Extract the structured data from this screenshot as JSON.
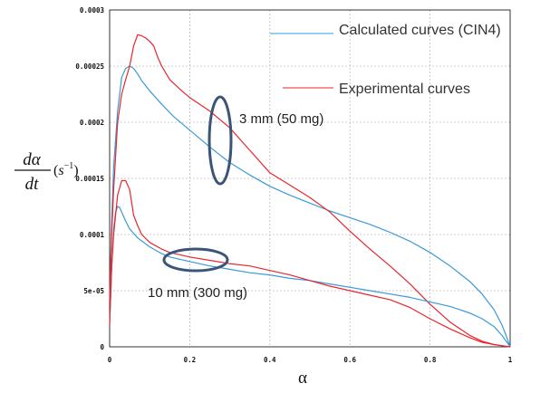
{
  "chart_data": {
    "type": "line",
    "title": "",
    "xlabel": "α",
    "ylabel": {
      "numerator": "dα",
      "denominator": "dt",
      "unit_base": "s",
      "unit_exp": "−1"
    },
    "xlim": [
      0,
      1
    ],
    "ylim": [
      0,
      0.0003
    ],
    "x_ticks": [
      {
        "value": 0,
        "label": "0"
      },
      {
        "value": 0.2,
        "label": "0.2"
      },
      {
        "value": 0.4,
        "label": "0.4"
      },
      {
        "value": 0.6,
        "label": "0.6"
      },
      {
        "value": 0.8,
        "label": "0.8"
      },
      {
        "value": 1,
        "label": "1"
      }
    ],
    "y_ticks": [
      {
        "value": 0,
        "label": "0"
      },
      {
        "value": 5e-05,
        "label": "5e-05"
      },
      {
        "value": 0.0001,
        "label": "0.0001"
      },
      {
        "value": 0.00015,
        "label": "0.00015"
      },
      {
        "value": 0.0002,
        "label": "0.0002"
      },
      {
        "value": 0.00025,
        "label": "0.00025"
      },
      {
        "value": 0.0003,
        "label": "0.0003"
      }
    ],
    "grid": true,
    "legend": [
      {
        "label": "Calculated curves (CIN4)",
        "color": "#3a9ad9"
      },
      {
        "label": "Experimental curves",
        "color": "#e8262c"
      }
    ],
    "annotations": [
      {
        "text": "3 mm (50 mg)",
        "ellipse_center": [
          0.275,
          0.000183
        ]
      },
      {
        "text": "10 mm (300 mg)",
        "ellipse_center": [
          0.215,
          7.8e-05
        ]
      }
    ],
    "series": [
      {
        "group": "3 mm (50 mg)",
        "kind": "calculated",
        "color": "#3a9ad9",
        "x": [
          0,
          0.005,
          0.01,
          0.02,
          0.03,
          0.04,
          0.05,
          0.06,
          0.07,
          0.08,
          0.1,
          0.13,
          0.16,
          0.2,
          0.25,
          0.3,
          0.35,
          0.4,
          0.45,
          0.5,
          0.55,
          0.6,
          0.65,
          0.7,
          0.75,
          0.8,
          0.85,
          0.9,
          0.93,
          0.96,
          0.98,
          0.99,
          1
        ],
        "y": [
          4e-05,
          0.00011,
          0.00016,
          0.00021,
          0.00024,
          0.000248,
          0.00025,
          0.000248,
          0.000243,
          0.000237,
          0.000228,
          0.000216,
          0.000205,
          0.000193,
          0.000178,
          0.000164,
          0.000153,
          0.000143,
          0.000135,
          0.000128,
          0.000121,
          0.000115,
          0.000109,
          0.000102,
          9.4e-05,
          8.4e-05,
          7.2e-05,
          5.8e-05,
          4.7e-05,
          3.3e-05,
          1.9e-05,
          1e-05,
          0
        ]
      },
      {
        "group": "3 mm (50 mg)",
        "kind": "experimental",
        "color": "#e8262c",
        "x": [
          0,
          0.005,
          0.01,
          0.02,
          0.03,
          0.04,
          0.05,
          0.06,
          0.07,
          0.08,
          0.09,
          0.1,
          0.11,
          0.12,
          0.13,
          0.15,
          0.18,
          0.2,
          0.25,
          0.3,
          0.35,
          0.4,
          0.45,
          0.5,
          0.55,
          0.6,
          0.65,
          0.7,
          0.75,
          0.8,
          0.85,
          0.9,
          0.93,
          0.96,
          0.98,
          1
        ],
        "y": [
          4e-05,
          0.0001,
          0.00014,
          0.0002,
          0.000225,
          0.000238,
          0.00025,
          0.000268,
          0.000278,
          0.000277,
          0.000275,
          0.000272,
          0.000268,
          0.000258,
          0.00025,
          0.000238,
          0.000228,
          0.000222,
          0.00021,
          0.000195,
          0.000175,
          0.000155,
          0.000144,
          0.000133,
          0.00012,
          0.000103,
          8.7e-05,
          7.2e-05,
          5.6e-05,
          3.8e-05,
          2.2e-05,
          1e-05,
          5e-06,
          2e-06,
          1e-06,
          0
        ]
      },
      {
        "group": "10 mm (300 mg)",
        "kind": "calculated",
        "color": "#3a9ad9",
        "x": [
          0,
          0.005,
          0.01,
          0.015,
          0.02,
          0.025,
          0.03,
          0.04,
          0.05,
          0.07,
          0.1,
          0.13,
          0.15,
          0.2,
          0.25,
          0.3,
          0.35,
          0.4,
          0.45,
          0.5,
          0.55,
          0.6,
          0.65,
          0.7,
          0.75,
          0.8,
          0.85,
          0.9,
          0.93,
          0.96,
          0.98,
          1
        ],
        "y": [
          2e-05,
          7e-05,
          0.000105,
          0.00012,
          0.000125,
          0.000124,
          0.00012,
          0.000112,
          0.000105,
          9.7e-05,
          8.9e-05,
          8.3e-05,
          8e-05,
          7.6e-05,
          7.2e-05,
          6.9e-05,
          6.6e-05,
          6.4e-05,
          6.1e-05,
          5.9e-05,
          5.6e-05,
          5.3e-05,
          5e-05,
          4.7e-05,
          4.4e-05,
          4e-05,
          3.6e-05,
          3e-05,
          2.5e-05,
          1.8e-05,
          1e-05,
          0
        ]
      },
      {
        "group": "10 mm (300 mg)",
        "kind": "experimental",
        "color": "#e8262c",
        "x": [
          0,
          0.005,
          0.01,
          0.02,
          0.03,
          0.04,
          0.05,
          0.06,
          0.07,
          0.08,
          0.1,
          0.13,
          0.15,
          0.2,
          0.25,
          0.3,
          0.35,
          0.4,
          0.45,
          0.5,
          0.55,
          0.6,
          0.65,
          0.7,
          0.75,
          0.8,
          0.85,
          0.9,
          0.93,
          0.96,
          0.98,
          1
        ],
        "y": [
          2e-05,
          7e-05,
          0.0001,
          0.000135,
          0.000148,
          0.000148,
          0.00014,
          0.000117,
          0.000108,
          0.0001,
          9.3e-05,
          8.7e-05,
          8.4e-05,
          8e-05,
          7.7e-05,
          7.4e-05,
          7.2e-05,
          6.8e-05,
          6.4e-05,
          5.9e-05,
          5.4e-05,
          5e-05,
          4.6e-05,
          4.2e-05,
          3.5e-05,
          2.5e-05,
          1.6e-05,
          8e-06,
          4e-06,
          2e-06,
          1e-06,
          0
        ]
      }
    ]
  }
}
